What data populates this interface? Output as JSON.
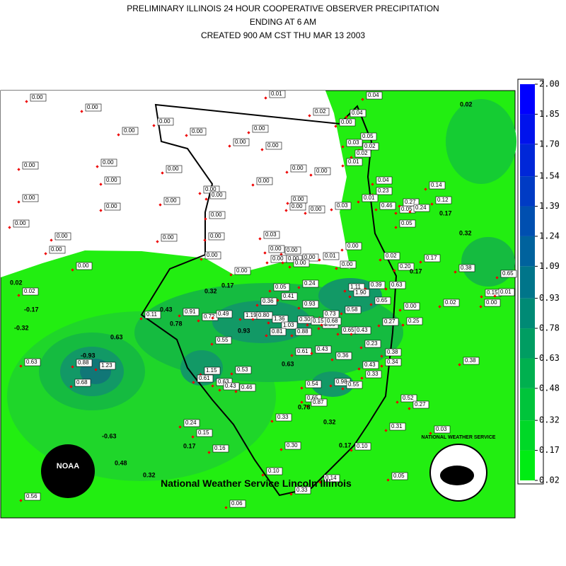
{
  "header": {
    "lines": [
      "PRELIMINARY ILLINOIS 24 HOUR COOPERATIVE OBSERVER PRECIPITATION",
      "ENDING AT 6 AM",
      "CREATED 900 AM CST THU MAR 13 2003"
    ]
  },
  "stations": [
    "0.00",
    "0.01",
    "0.04",
    "0.00",
    "0.02",
    "0.04",
    "0.00",
    "0.00",
    "0.00",
    "0.00",
    "0.00",
    "0.05",
    "0.00",
    "0.00",
    "0.03",
    "0.02",
    "0.02",
    "0.00",
    "0.00",
    "0.00",
    "0.00",
    "0.00",
    "0.01",
    "0.00",
    "0.00",
    "0.04",
    "0.14",
    "0.23",
    "0.00",
    "0.00",
    "0.00",
    "0.00",
    "0.00",
    "0.01",
    "0.12",
    "0.00",
    "0.00",
    "0.00",
    "0.03",
    "0.46",
    "0.05",
    "0.27",
    "0.24",
    "0.00",
    "0.00",
    "0.05",
    "0.00",
    "0.00",
    "0.00",
    "0.03",
    "0.00",
    "0.00",
    "0.00",
    "0.00",
    "0.00",
    "0.00",
    "0.00",
    "0.00",
    "0.01",
    "0.02",
    "0.17",
    "0.00",
    "0.00",
    "0.00",
    "0.00",
    "0.20",
    "0.38",
    "0.65",
    "0.02",
    "0.05",
    "0.24",
    "1.11",
    "0.39",
    "0.63",
    "1.90",
    "0.15",
    "0.01",
    "0.41",
    "0.36",
    "0.65",
    "0.00",
    "0.02",
    "0.00",
    "0.93",
    "0.58",
    "0.11",
    "0.91",
    "0.72",
    "0.49",
    "1.19",
    "0.80",
    "0.73",
    "1.36",
    "0.55",
    "0.30",
    "0.15",
    "0.68",
    "0.25",
    "0.27",
    "1.03",
    "0.81",
    "0.88",
    "0.65",
    "0.43",
    "0.55",
    "0.23",
    "0.61",
    "0.43",
    "0.36",
    "0.38",
    "0.34",
    "0.88",
    "1.23",
    "0.38",
    "0.43",
    "0.33",
    "0.63",
    "1.15",
    "0.53",
    "0.61",
    "0.63",
    "0.43",
    "0.46",
    "0.54",
    "0.68",
    "0.98",
    "0.55",
    "0.65",
    "0.87",
    "0.52",
    "0.27",
    "0.33",
    "0.24",
    "0.31",
    "0.03",
    "0.15",
    "0.30",
    "0.16",
    "0.10",
    "0.10",
    "0.05",
    "0.14",
    "0.33",
    "0.56",
    "0.06"
  ],
  "contour_labels": [
    "0.02",
    "0.02",
    "-0.17",
    "-0.32",
    "0.63",
    "-0.93",
    "0.17",
    "0.32",
    "0.17",
    "0.43",
    "0.78",
    "0.32",
    "0.17",
    "0.63",
    "0.93",
    "0.78",
    "0.32",
    "-0.63",
    "0.17",
    "0.48",
    "0.32",
    "0.17"
  ],
  "legend": {
    "ticks": [
      {
        "value": 2,
        "label": "2.00"
      },
      {
        "value": 1.85,
        "label": "1.85"
      },
      {
        "value": 1.7,
        "label": "1.70"
      },
      {
        "value": 1.54,
        "label": "1.54"
      },
      {
        "value": 1.39,
        "label": "1.39"
      },
      {
        "value": 1.24,
        "label": "1.24"
      },
      {
        "value": 1.09,
        "label": "1.09"
      },
      {
        "value": 0.93,
        "label": "0.93"
      },
      {
        "value": 0.78,
        "label": "0.78"
      },
      {
        "value": 0.63,
        "label": "0.63"
      },
      {
        "value": 0.48,
        "label": "0.48"
      },
      {
        "value": 0.32,
        "label": "0.32"
      },
      {
        "value": 0.17,
        "label": "0.17"
      },
      {
        "value": 0.02,
        "label": "0.02"
      }
    ]
  },
  "credit": "National Weather Service Lincoln Illinois",
  "logos": {
    "noaa": "NOAA",
    "nws": "NATIONAL WEATHER SERVICE"
  }
}
